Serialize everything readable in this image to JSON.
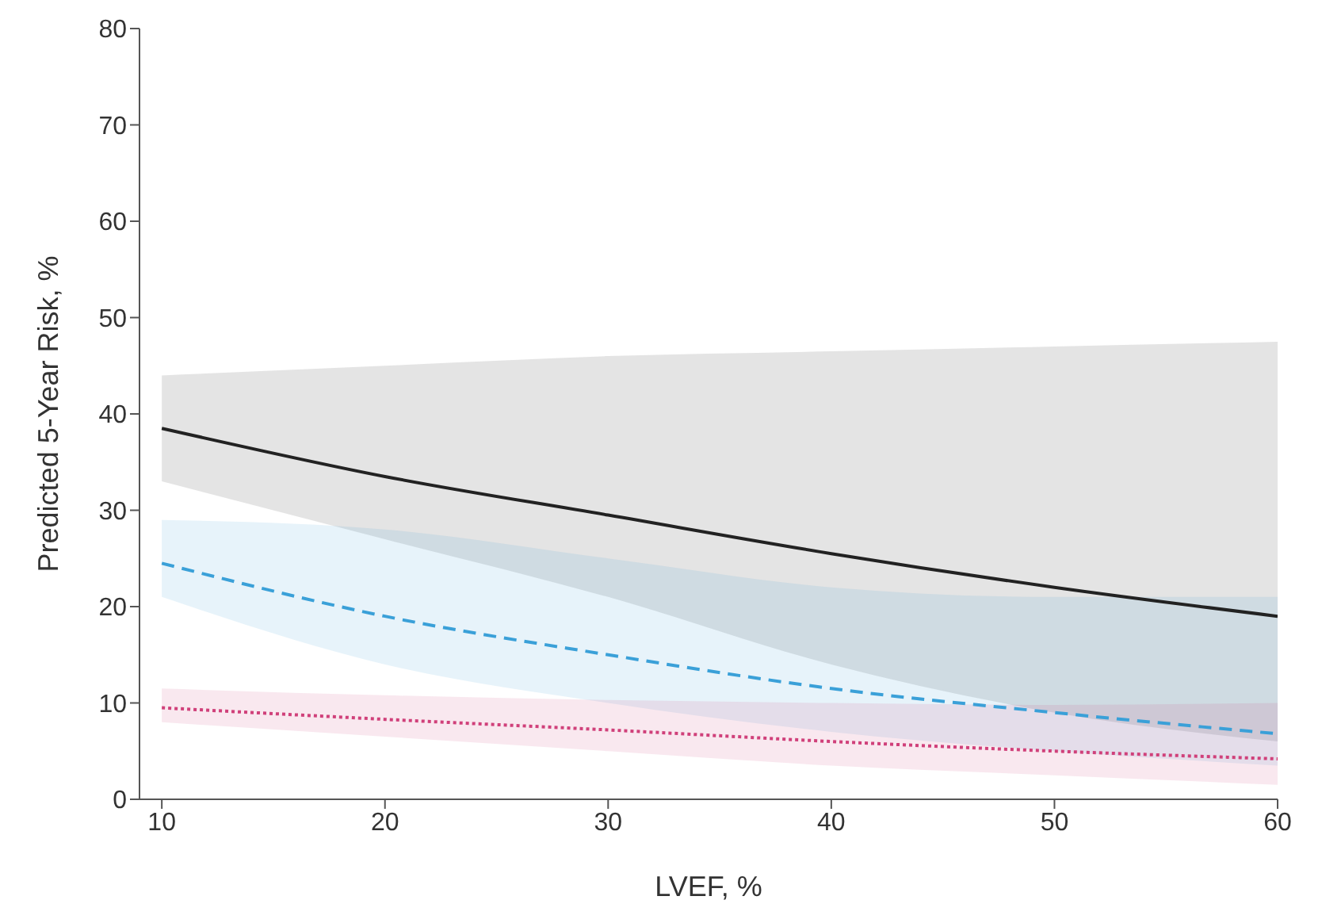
{
  "chart_data": {
    "type": "line",
    "xlabel": "LVEF, %",
    "ylabel": "Predicted 5-Year Risk, %",
    "x": [
      10,
      20,
      30,
      40,
      50,
      60
    ],
    "series": [
      {
        "color": "#222222",
        "line_style": "solid",
        "values": [
          38.5,
          33.5,
          29.5,
          25.5,
          22,
          19
        ],
        "lower": [
          33,
          27,
          21,
          14,
          9,
          6
        ],
        "upper": [
          44,
          45,
          46,
          46.5,
          47,
          47.5
        ]
      },
      {
        "color": "#3aa0d8",
        "line_style": "dashed",
        "values": [
          24.5,
          19,
          15,
          11.5,
          9,
          6.8
        ],
        "lower": [
          21,
          14,
          10,
          7,
          5,
          3.5
        ],
        "upper": [
          29,
          28,
          25,
          22,
          21,
          21
        ]
      },
      {
        "color": "#d0407a",
        "line_style": "dotted",
        "values": [
          9.5,
          8.3,
          7.2,
          6,
          5,
          4.2
        ],
        "lower": [
          8,
          6.5,
          5,
          3.5,
          2.5,
          1.5
        ],
        "upper": [
          11.5,
          10.8,
          10.3,
          10,
          9.8,
          10
        ]
      }
    ],
    "xlim": [
      9,
      60
    ],
    "xticks": [
      10,
      20,
      30,
      40,
      50,
      60
    ],
    "ylim": [
      0,
      80
    ],
    "yticks": [
      0,
      10,
      20,
      30,
      40,
      50,
      60,
      70,
      80
    ],
    "grid": false,
    "legend": false
  }
}
